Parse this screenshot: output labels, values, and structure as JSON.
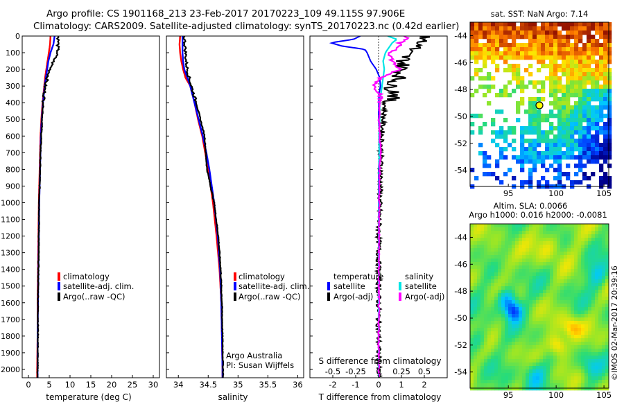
{
  "header": {
    "line1": "Argo profile: CS 1901168_213 23-Feb-2017 20170223_109 49.115S 97.906E",
    "line2": "Climatology: CARS2009. Satellite-adjusted climatology: synTS_20170223.nc (0.42d earlier)"
  },
  "depth_ticks": [
    "0",
    "100",
    "200",
    "300",
    "400",
    "500",
    "600",
    "700",
    "800",
    "900",
    "1000",
    "1100",
    "1200",
    "1300",
    "1400",
    "1500",
    "1600",
    "1700",
    "1800",
    "1900",
    "2000"
  ],
  "colors": {
    "climatology": "#ff0000",
    "satellite": "#0000ff",
    "argo": "#000000",
    "sat_salinity": "#00e5e5",
    "argo_salinity": "#ff00ff"
  },
  "chart_data": [
    {
      "type": "line",
      "panel": "temperature",
      "xlabel": "temperature (deg C)",
      "xlim": [
        -1.5,
        31.5
      ],
      "ylim": [
        2050,
        0
      ],
      "xticks": [
        "0",
        "5",
        "10",
        "15",
        "20",
        "25",
        "30"
      ],
      "legend": {
        "climatology": "climatology",
        "satellite": "satellite-adj. clim.",
        "argo": "Argo(..raw -QC)"
      },
      "depth": [
        0,
        50,
        100,
        150,
        200,
        250,
        300,
        350,
        400,
        500,
        600,
        700,
        800,
        1000,
        1200,
        1400,
        1600,
        1800,
        2000,
        2050
      ],
      "series": [
        {
          "name": "climatology",
          "values": [
            5.3,
            5.2,
            4.9,
            4.6,
            4.3,
            4.0,
            3.8,
            3.6,
            3.4,
            3.1,
            2.9,
            2.8,
            2.7,
            2.5,
            2.4,
            2.3,
            2.2,
            2.2,
            2.1,
            2.1
          ]
        },
        {
          "name": "satellite-adj. clim.",
          "values": [
            6.3,
            6.0,
            5.3,
            4.8,
            4.5,
            4.2,
            3.9,
            3.7,
            3.5,
            3.2,
            3.0,
            2.9,
            2.8,
            2.6,
            2.5,
            2.4,
            2.3,
            2.2,
            2.2,
            2.2
          ]
        },
        {
          "name": "Argo(..raw -QC)",
          "values": [
            7.2,
            7.1,
            7.0,
            6.0,
            5.2,
            4.6,
            4.0,
            3.8,
            3.6,
            3.3,
            3.1,
            2.9,
            2.8,
            2.6,
            2.5,
            2.4,
            2.3,
            2.3,
            2.2,
            2.2
          ]
        }
      ]
    },
    {
      "type": "line",
      "panel": "salinity",
      "xlabel": "salinity",
      "xlim": [
        33.8,
        36.1
      ],
      "ylim": [
        2050,
        0
      ],
      "xticks": [
        "34",
        "34.5",
        "35",
        "35.5",
        "36"
      ],
      "legend": {
        "climatology": "climatology",
        "satellite": "satellite-adj. clim.",
        "argo": "Argo(..raw -QC)"
      },
      "annotation": {
        "line1": "Argo Australia",
        "line2": "PI: Susan Wijffels"
      },
      "depth": [
        0,
        50,
        100,
        150,
        200,
        250,
        300,
        400,
        500,
        600,
        700,
        800,
        1000,
        1200,
        1400,
        1600,
        1800,
        2000,
        2050
      ],
      "series": [
        {
          "name": "climatology",
          "values": [
            34.03,
            34.02,
            34.03,
            34.05,
            34.08,
            34.12,
            34.2,
            34.27,
            34.33,
            34.4,
            34.45,
            34.5,
            34.58,
            34.64,
            34.69,
            34.72,
            34.73,
            34.74,
            34.74
          ]
        },
        {
          "name": "satellite-adj. clim.",
          "values": [
            34.07,
            34.07,
            34.07,
            34.08,
            34.1,
            34.15,
            34.2,
            34.27,
            34.34,
            34.41,
            34.47,
            34.52,
            34.6,
            34.66,
            34.7,
            34.72,
            34.73,
            34.74,
            34.74
          ]
        },
        {
          "name": "Argo(..raw -QC)",
          "values": [
            34.1,
            34.11,
            34.12,
            34.13,
            34.15,
            34.18,
            34.22,
            34.3,
            34.37,
            34.44,
            34.46,
            34.48,
            34.6,
            34.67,
            34.71,
            34.73,
            34.74,
            34.75,
            34.75
          ]
        }
      ]
    },
    {
      "type": "line",
      "panel": "difference",
      "xlabel": "T difference from climatology",
      "xlabel_top": "S difference from climatology",
      "xlim": [
        -3,
        3
      ],
      "ylim": [
        2050,
        0
      ],
      "xticks": [
        "-2",
        "-1",
        "0",
        "1",
        "2"
      ],
      "top_ticks": [
        "-0.5",
        "-0.25",
        "0",
        "0.25",
        "0.5"
      ],
      "legend": {
        "temperature": "temperature",
        "salinity": "salinity",
        "satellite": "satellite",
        "argo_adj": "Argo(-adj)"
      },
      "depth": [
        0,
        20,
        40,
        60,
        80,
        100,
        150,
        200,
        250,
        300,
        350,
        400,
        500,
        600,
        700,
        800,
        1000,
        1200,
        1500,
        1800,
        2050
      ],
      "series": [
        {
          "name": "T satellite",
          "values": [
            -0.8,
            -1.1,
            -2.1,
            -1.6,
            -0.6,
            -0.5,
            -0.35,
            -0.1,
            0.05,
            0.08,
            0.02,
            0.01,
            0.0,
            0.05,
            0.05,
            0.0,
            0.0,
            0.0,
            0.0,
            0.0,
            0.0
          ]
        },
        {
          "name": "T Argo(-adj)",
          "values": [
            1.8,
            2.2,
            1.6,
            1.9,
            1.4,
            1.2,
            1.1,
            1.0,
            0.9,
            0.5,
            0.8,
            0.3,
            0.2,
            0.15,
            0.1,
            0.1,
            0.05,
            0.0,
            0.0,
            0.0,
            0.0
          ]
        },
        {
          "name": "S satellite",
          "values": [
            0.4,
            0.8,
            0.6,
            0.5,
            0.4,
            0.3,
            0.2,
            0.25,
            0.2,
            0.15,
            0.1,
            0.05,
            0.05,
            0.02,
            0.03,
            0.02,
            0.01,
            0.01,
            0.0,
            0.0,
            0.0
          ]
        },
        {
          "name": "S Argo(-adj)",
          "values": [
            1.2,
            1.2,
            0.9,
            0.9,
            0.8,
            0.5,
            0.6,
            0.9,
            0.1,
            -0.2,
            0.1,
            0.05,
            0.02,
            0.05,
            0.1,
            0.05,
            0.03,
            0.02,
            0.01,
            0.01,
            0.01
          ]
        }
      ]
    },
    {
      "type": "heatmap",
      "panel": "sst-map",
      "title": "sat. SST: NaN Argo: 7.14",
      "xlim": [
        91,
        105.5
      ],
      "ylim": [
        -55.2,
        -43
      ],
      "xticks": [
        "95",
        "100",
        "105"
      ],
      "yticks": [
        "-44",
        "-46",
        "-48",
        "-50",
        "-52",
        "-54"
      ],
      "marker": {
        "lon": 97.9,
        "lat": -49.1
      }
    },
    {
      "type": "heatmap",
      "panel": "sla-map",
      "title1": "Altim. SLA: 0.0066",
      "title2": "Argo h1000: 0.016 h2000: -0.0081",
      "xlim": [
        91,
        105.5
      ],
      "ylim": [
        -55.2,
        -43
      ],
      "xticks": [
        "95",
        "100",
        "105"
      ],
      "yticks": [
        "-44",
        "-46",
        "-48",
        "-50",
        "-52",
        "-54"
      ],
      "side_label": "©IMOS 02-Mar-2017 20:39:16"
    }
  ]
}
